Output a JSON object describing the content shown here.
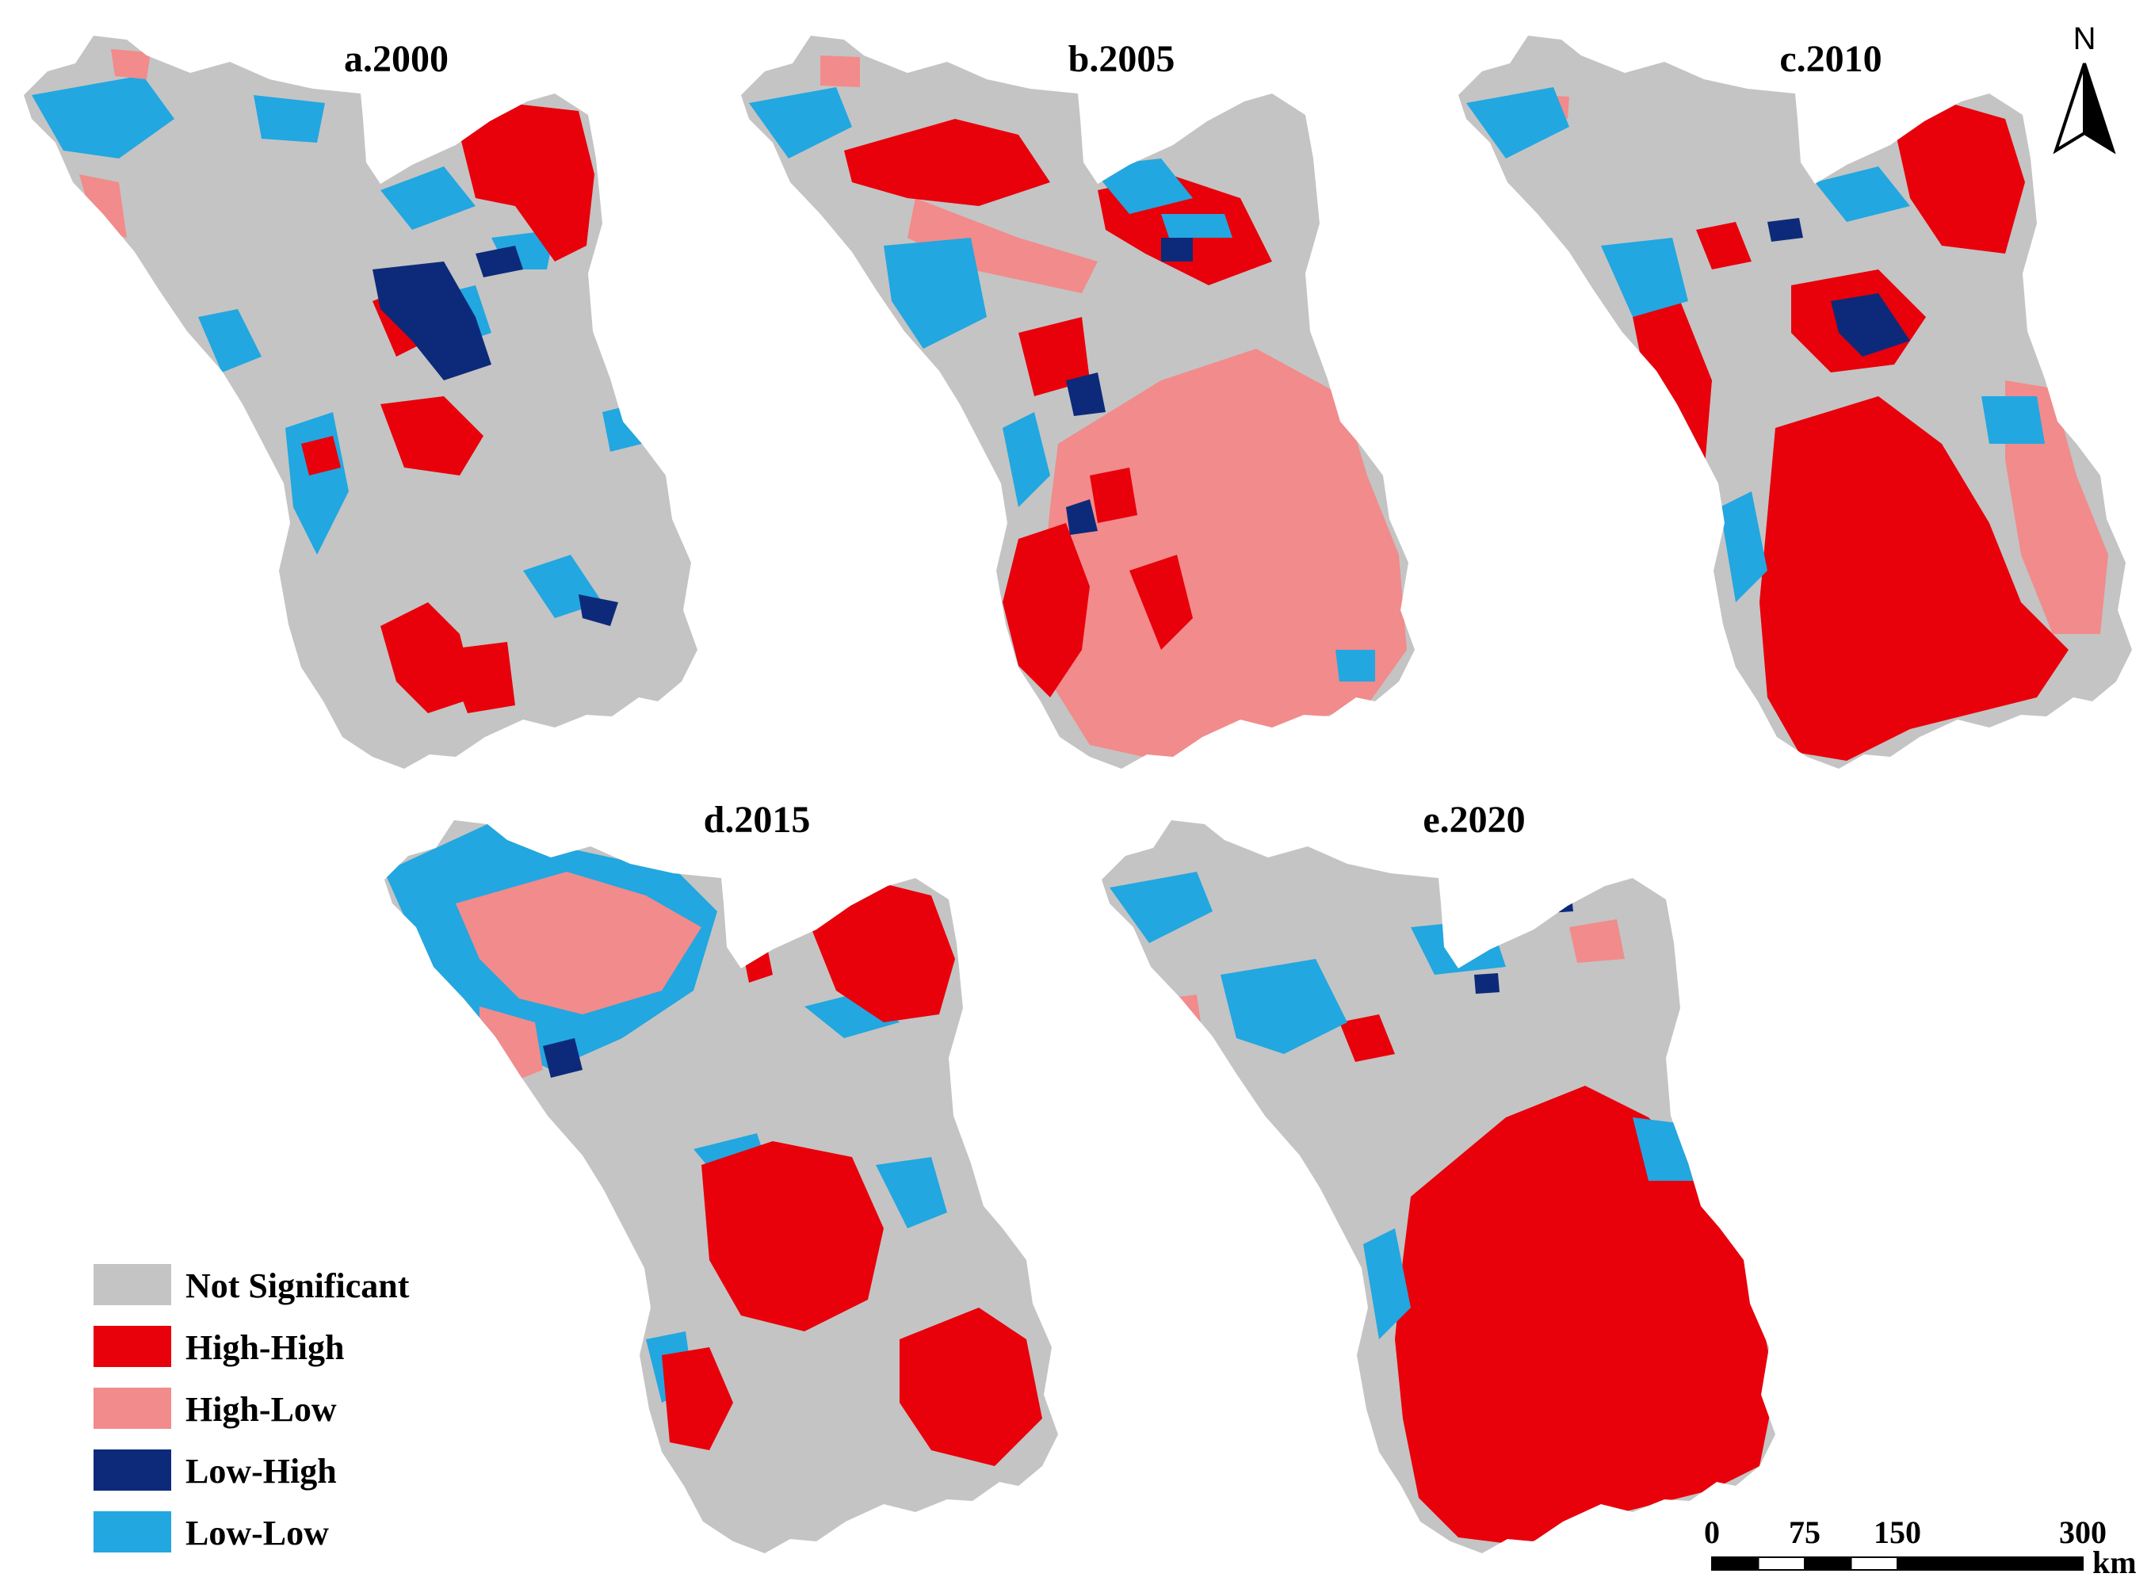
{
  "colors": {
    "not_significant": "#c4c4c4",
    "high_high": "#e8000b",
    "high_low": "#f28b8b",
    "low_high": "#0d2a7a",
    "low_low": "#22a7e0",
    "text": "#000000"
  },
  "panels": [
    {
      "id": "a",
      "title": "a.2000"
    },
    {
      "id": "b",
      "title": "b.2005"
    },
    {
      "id": "c",
      "title": "c.2010"
    },
    {
      "id": "d",
      "title": "d.2015"
    },
    {
      "id": "e",
      "title": "e.2020"
    }
  ],
  "legend": {
    "items": [
      {
        "key": "not_significant",
        "label": "Not Significant"
      },
      {
        "key": "high_high",
        "label": "High-High"
      },
      {
        "key": "high_low",
        "label": "High-Low"
      },
      {
        "key": "low_high",
        "label": "Low-High"
      },
      {
        "key": "low_low",
        "label": "Low-Low"
      }
    ]
  },
  "north_arrow": {
    "label": "N",
    "icon": "north-arrow-icon"
  },
  "scale_bar": {
    "ticks": [
      "0",
      "75",
      "150",
      "300"
    ],
    "unit": "km"
  }
}
